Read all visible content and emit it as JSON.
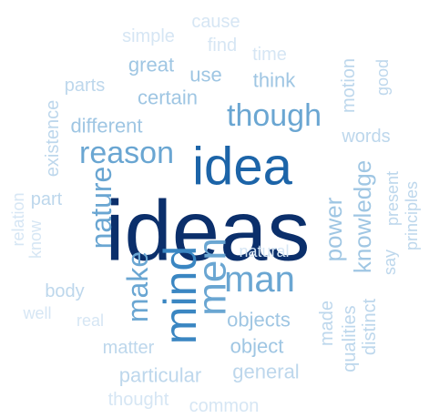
{
  "title": "word cloud",
  "colors": {
    "darkest": "#0b2f6b",
    "dark": "#1c64a8",
    "mid_dark": "#3a86c2",
    "mid": "#6aa6d2",
    "light_mid": "#9fc6e3",
    "light": "#bdd7ec",
    "lightest": "#d6e6f4"
  },
  "words": [
    {
      "id": "ideas",
      "text": "ideas"
    },
    {
      "id": "idea",
      "text": "idea"
    },
    {
      "id": "mind",
      "text": "mind"
    },
    {
      "id": "men",
      "text": "men"
    },
    {
      "id": "man",
      "text": "man"
    },
    {
      "id": "reason",
      "text": "reason"
    },
    {
      "id": "nature",
      "text": "nature"
    },
    {
      "id": "make",
      "text": "make"
    },
    {
      "id": "though",
      "text": "though"
    },
    {
      "id": "knowledge",
      "text": "knowledge"
    },
    {
      "id": "power",
      "text": "power"
    },
    {
      "id": "objects",
      "text": "objects"
    },
    {
      "id": "object",
      "text": "object"
    },
    {
      "id": "certain",
      "text": "certain"
    },
    {
      "id": "different",
      "text": "different"
    },
    {
      "id": "think",
      "text": "think"
    },
    {
      "id": "great",
      "text": "great"
    },
    {
      "id": "use",
      "text": "use"
    },
    {
      "id": "particular",
      "text": "particular"
    },
    {
      "id": "general",
      "text": "general"
    },
    {
      "id": "matter",
      "text": "matter"
    },
    {
      "id": "body",
      "text": "body"
    },
    {
      "id": "part",
      "text": "part"
    },
    {
      "id": "parts",
      "text": "parts"
    },
    {
      "id": "existence",
      "text": "existence"
    },
    {
      "id": "made",
      "text": "made"
    },
    {
      "id": "distinct",
      "text": "distinct"
    },
    {
      "id": "qualities",
      "text": "qualities"
    },
    {
      "id": "words",
      "text": "words"
    },
    {
      "id": "motion",
      "text": "motion"
    },
    {
      "id": "good",
      "text": "good"
    },
    {
      "id": "present",
      "text": "present"
    },
    {
      "id": "say",
      "text": "say"
    },
    {
      "id": "principles",
      "text": "principles"
    },
    {
      "id": "natural",
      "text": "natural"
    },
    {
      "id": "real",
      "text": "real"
    },
    {
      "id": "well",
      "text": "well"
    },
    {
      "id": "know",
      "text": "know"
    },
    {
      "id": "relation",
      "text": "relation"
    },
    {
      "id": "thought",
      "text": "thought"
    },
    {
      "id": "common",
      "text": "common"
    },
    {
      "id": "simple",
      "text": "simple"
    },
    {
      "id": "cause",
      "text": "cause"
    },
    {
      "id": "find",
      "text": "find"
    },
    {
      "id": "time",
      "text": "time"
    }
  ]
}
